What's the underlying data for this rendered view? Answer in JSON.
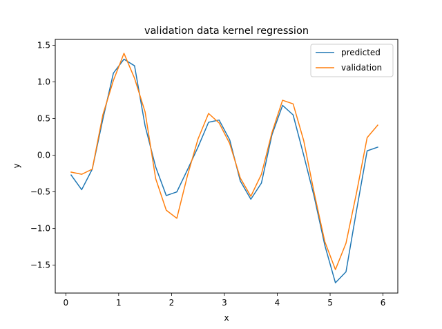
{
  "chart_data": {
    "type": "line",
    "title": "validation data kernel regression",
    "xlabel": "x",
    "ylabel": "y",
    "xlim": [
      -0.2,
      6.28
    ],
    "ylim": [
      -1.88,
      1.58
    ],
    "xticks": [
      0,
      1,
      2,
      3,
      4,
      5,
      6
    ],
    "yticks": [
      -1.5,
      -1.0,
      -0.5,
      0.0,
      0.5,
      1.0,
      1.5
    ],
    "xtick_labels": [
      "0",
      "1",
      "2",
      "3",
      "4",
      "5",
      "6"
    ],
    "ytick_labels": [
      "−1.5",
      "−1.0",
      "−0.5",
      "0.0",
      "0.5",
      "1.0",
      "1.5"
    ],
    "grid": false,
    "legend_position": "top-right",
    "series": [
      {
        "name": "predicted",
        "color": "#1f77b4",
        "x": [
          0.1,
          0.3,
          0.5,
          0.7,
          0.9,
          1.1,
          1.3,
          1.5,
          1.7,
          1.9,
          2.1,
          2.3,
          2.5,
          2.7,
          2.9,
          3.1,
          3.3,
          3.5,
          3.7,
          3.9,
          4.1,
          4.3,
          4.5,
          4.7,
          4.9,
          5.1,
          5.3,
          5.5,
          5.7,
          5.9
        ],
        "y": [
          -0.27,
          -0.47,
          -0.19,
          0.49,
          1.12,
          1.31,
          1.22,
          0.4,
          -0.16,
          -0.55,
          -0.5,
          -0.2,
          0.11,
          0.45,
          0.48,
          0.21,
          -0.35,
          -0.6,
          -0.38,
          0.28,
          0.68,
          0.55,
          0.0,
          -0.57,
          -1.23,
          -1.74,
          -1.59,
          -0.75,
          0.06,
          0.11
        ]
      },
      {
        "name": "validation",
        "color": "#ff7f0e",
        "x": [
          0.1,
          0.3,
          0.5,
          0.7,
          0.9,
          1.1,
          1.3,
          1.5,
          1.7,
          1.9,
          2.1,
          2.3,
          2.5,
          2.7,
          2.9,
          3.1,
          3.3,
          3.5,
          3.7,
          3.9,
          4.1,
          4.3,
          4.5,
          4.7,
          4.9,
          5.1,
          5.3,
          5.5,
          5.7,
          5.9
        ],
        "y": [
          -0.23,
          -0.26,
          -0.19,
          0.55,
          1.02,
          1.39,
          1.05,
          0.59,
          -0.32,
          -0.75,
          -0.86,
          -0.28,
          0.22,
          0.57,
          0.44,
          0.16,
          -0.31,
          -0.56,
          -0.26,
          0.31,
          0.75,
          0.7,
          0.2,
          -0.52,
          -1.18,
          -1.56,
          -1.2,
          -0.51,
          0.24,
          0.41
        ]
      }
    ]
  }
}
